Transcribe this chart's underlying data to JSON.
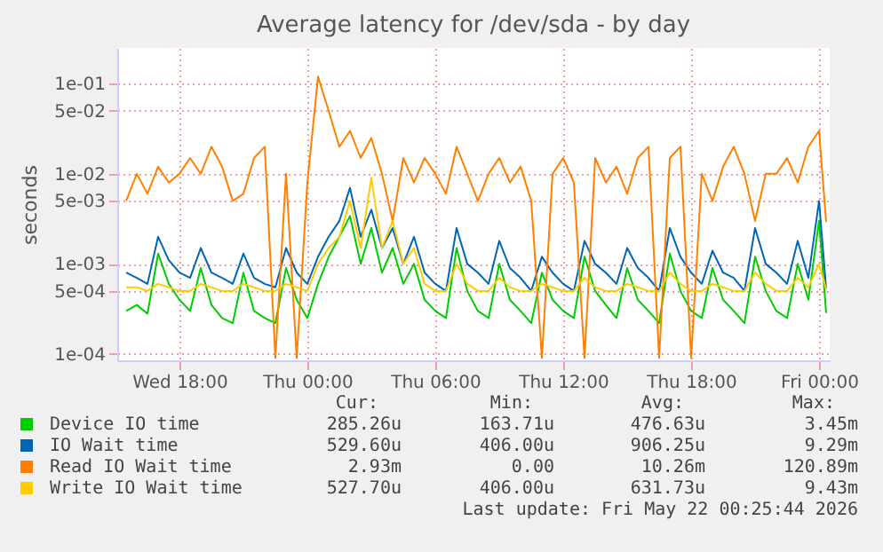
{
  "chart_data": {
    "type": "line",
    "title": "Average latency for /dev/sda - by day",
    "ylabel": "seconds",
    "x": [
      "2026-05-20T15:30",
      "2026-05-20T16:00",
      "2026-05-20T16:30",
      "2026-05-20T17:00",
      "2026-05-20T17:30",
      "2026-05-20T18:00",
      "2026-05-20T18:30",
      "2026-05-20T19:00",
      "2026-05-20T19:30",
      "2026-05-20T20:00",
      "2026-05-20T20:30",
      "2026-05-20T21:00",
      "2026-05-20T21:30",
      "2026-05-20T22:00",
      "2026-05-20T22:30",
      "2026-05-20T23:00",
      "2026-05-20T23:30",
      "2026-05-21T00:00",
      "2026-05-21T00:30",
      "2026-05-21T01:00",
      "2026-05-21T01:30",
      "2026-05-21T02:00",
      "2026-05-21T02:30",
      "2026-05-21T03:00",
      "2026-05-21T03:30",
      "2026-05-21T04:00",
      "2026-05-21T04:30",
      "2026-05-21T05:00",
      "2026-05-21T05:30",
      "2026-05-21T06:00",
      "2026-05-21T06:30",
      "2026-05-21T07:00",
      "2026-05-21T07:30",
      "2026-05-21T08:00",
      "2026-05-21T08:30",
      "2026-05-21T09:00",
      "2026-05-21T09:30",
      "2026-05-21T10:00",
      "2026-05-21T10:30",
      "2026-05-21T11:00",
      "2026-05-21T11:30",
      "2026-05-21T12:00",
      "2026-05-21T12:30",
      "2026-05-21T13:00",
      "2026-05-21T13:30",
      "2026-05-21T14:00",
      "2026-05-21T14:30",
      "2026-05-21T15:00",
      "2026-05-21T15:30",
      "2026-05-21T16:00",
      "2026-05-21T16:30",
      "2026-05-21T17:00",
      "2026-05-21T17:30",
      "2026-05-21T18:00",
      "2026-05-21T18:30",
      "2026-05-21T19:00",
      "2026-05-21T19:30",
      "2026-05-21T20:00",
      "2026-05-21T20:30",
      "2026-05-21T21:00",
      "2026-05-21T21:30",
      "2026-05-21T22:00",
      "2026-05-21T22:30",
      "2026-05-21T23:00",
      "2026-05-21T23:30",
      "2026-05-22T00:00",
      "2026-05-22T00:20"
    ],
    "series": [
      {
        "name": "Device IO time",
        "color": "#00cc00",
        "values": [
          0.0003,
          0.00035,
          0.00028,
          0.0013,
          0.0006,
          0.0004,
          0.0003,
          0.0009,
          0.00035,
          0.00025,
          0.00022,
          0.0008,
          0.0003,
          0.00025,
          0.00022,
          0.0009,
          0.0004,
          0.00025,
          0.0006,
          0.0012,
          0.002,
          0.0034,
          0.001,
          0.0025,
          0.0008,
          0.0015,
          0.0006,
          0.001,
          0.0004,
          0.0003,
          0.00025,
          0.0015,
          0.0005,
          0.0003,
          0.00025,
          0.001,
          0.0004,
          0.0003,
          0.00022,
          0.0008,
          0.0004,
          0.0003,
          0.00025,
          0.0012,
          0.0005,
          0.00035,
          0.00025,
          0.0009,
          0.0004,
          0.0003,
          0.00022,
          0.0013,
          0.0005,
          0.0003,
          0.00025,
          0.0009,
          0.0004,
          0.0003,
          0.00022,
          0.0012,
          0.0005,
          0.0003,
          0.00025,
          0.001,
          0.0004,
          0.003,
          0.000285
        ]
      },
      {
        "name": "IO Wait time",
        "color": "#0066b3",
        "values": [
          0.0008,
          0.0007,
          0.0006,
          0.002,
          0.0011,
          0.0008,
          0.0007,
          0.0015,
          0.0008,
          0.0007,
          0.0006,
          0.0013,
          0.0007,
          0.0006,
          0.00055,
          0.0015,
          0.0008,
          0.0006,
          0.0012,
          0.002,
          0.003,
          0.007,
          0.002,
          0.004,
          0.0015,
          0.0025,
          0.001,
          0.002,
          0.0008,
          0.0006,
          0.0005,
          0.0025,
          0.001,
          0.0008,
          0.0006,
          0.0018,
          0.0009,
          0.0007,
          0.0005,
          0.0012,
          0.0008,
          0.0006,
          0.0005,
          0.0018,
          0.001,
          0.0008,
          0.0006,
          0.0015,
          0.0009,
          0.0007,
          0.0005,
          0.0025,
          0.0012,
          0.0008,
          0.0006,
          0.0014,
          0.0008,
          0.0007,
          0.0005,
          0.0025,
          0.001,
          0.0008,
          0.0006,
          0.0018,
          0.0007,
          0.005,
          0.00053
        ]
      },
      {
        "name": "Read IO Wait time",
        "color": "#ff8000",
        "values": [
          0.005,
          0.01,
          0.006,
          0.012,
          0.008,
          0.01,
          0.015,
          0.01,
          0.02,
          0.012,
          0.005,
          0.006,
          0.015,
          0.02,
          9e-05,
          0.01,
          9e-05,
          0.008,
          0.12,
          0.05,
          0.02,
          0.03,
          0.015,
          0.025,
          0.01,
          0.003,
          0.015,
          0.008,
          0.015,
          0.01,
          0.006,
          0.02,
          0.01,
          0.005,
          0.01,
          0.015,
          0.008,
          0.012,
          0.005,
          9e-05,
          0.01,
          0.015,
          0.008,
          9e-05,
          0.015,
          0.008,
          0.012,
          0.006,
          0.015,
          0.02,
          9e-05,
          0.015,
          0.02,
          9e-05,
          0.01,
          0.005,
          0.012,
          0.02,
          0.01,
          0.003,
          0.01,
          0.01,
          0.015,
          0.008,
          0.02,
          0.03,
          0.00293
        ]
      },
      {
        "name": "Write IO Wait time",
        "color": "#ffcc00",
        "values": [
          0.00055,
          0.00055,
          0.0005,
          0.0006,
          0.00055,
          0.0005,
          0.0005,
          0.0006,
          0.00055,
          0.0005,
          0.0005,
          0.0006,
          0.00055,
          0.0005,
          0.0005,
          0.0006,
          0.00055,
          0.0005,
          0.001,
          0.0015,
          0.002,
          0.005,
          0.0015,
          0.009,
          0.0015,
          0.003,
          0.001,
          0.0015,
          0.0006,
          0.0005,
          0.0005,
          0.001,
          0.0006,
          0.0005,
          0.0005,
          0.0007,
          0.00055,
          0.0005,
          0.0005,
          0.0006,
          0.00055,
          0.0005,
          0.0005,
          0.0007,
          0.00055,
          0.0005,
          0.0005,
          0.0006,
          0.00055,
          0.0005,
          0.0005,
          0.0008,
          0.0006,
          0.0005,
          0.0005,
          0.0006,
          0.00055,
          0.0005,
          0.0005,
          0.0008,
          0.0006,
          0.0005,
          0.0005,
          0.0007,
          0.00055,
          0.001,
          0.000528
        ]
      }
    ],
    "xlim": [
      "2026-05-20T15:05",
      "2026-05-22T00:30"
    ],
    "xticks": [
      {
        "value": "2026-05-20T18:00",
        "label": "Wed 18:00"
      },
      {
        "value": "2026-05-21T00:00",
        "label": "Thu 00:00"
      },
      {
        "value": "2026-05-21T06:00",
        "label": "Thu 06:00"
      },
      {
        "value": "2026-05-21T12:00",
        "label": "Thu 12:00"
      },
      {
        "value": "2026-05-21T18:00",
        "label": "Thu 18:00"
      },
      {
        "value": "2026-05-22T00:00",
        "label": "Fri 00:00"
      }
    ],
    "ylim": [
      8.5e-05,
      0.25
    ],
    "yticks": [
      {
        "value": 0.0001,
        "label": "1e-04"
      },
      {
        "value": 0.0005,
        "label": "5e-04"
      },
      {
        "value": 0.001,
        "label": "1e-03"
      },
      {
        "value": 0.005,
        "label": "5e-03"
      },
      {
        "value": 0.01,
        "label": "1e-02"
      },
      {
        "value": 0.05,
        "label": "5e-02"
      },
      {
        "value": 0.1,
        "label": "1e-01"
      }
    ],
    "log": "y",
    "grid": true,
    "legend": "bottom left",
    "annotations": [
      "Cur:",
      "Min:",
      "Avg:",
      "Max:",
      "285.26u",
      "163.71u",
      "476.63u",
      "3.45m",
      "529.60u",
      "406.00u",
      "906.25u",
      "9.29m",
      "2.93m",
      "0.00",
      "10.26m",
      "120.89m",
      "527.70u",
      "406.00u",
      "631.73u",
      "9.43m",
      "Last update: Fri May 22 00:25:44 2026"
    ]
  }
}
